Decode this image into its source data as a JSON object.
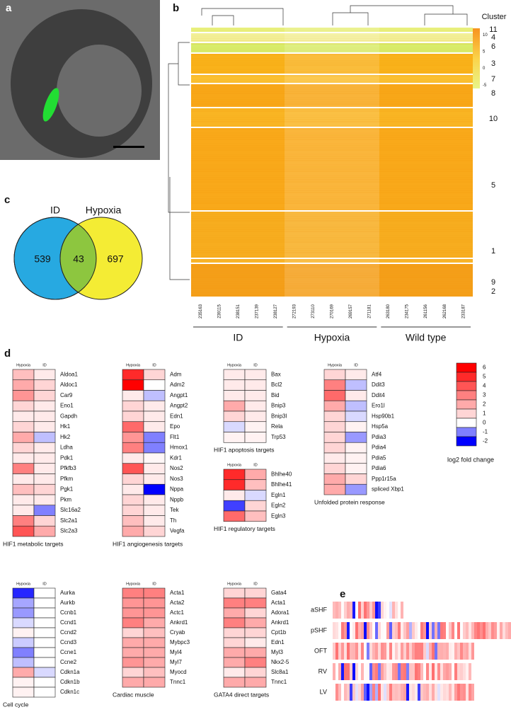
{
  "panel_a": {
    "label": "a"
  },
  "panel_b": {
    "label": "b",
    "cluster_title": "Cluster",
    "clusters": [
      "11",
      "4",
      "6",
      "3",
      "7",
      "8",
      "10",
      "5",
      "1",
      "9",
      "2"
    ],
    "colorbar_ticks": [
      10,
      5,
      0,
      -5
    ],
    "samples": [
      "235163",
      "239115",
      "238151",
      "237139",
      "238127",
      "272193",
      "273110",
      "270169",
      "269157",
      "271181",
      "263180",
      "234175",
      "261156",
      "262168",
      "233187"
    ],
    "groups": [
      "ID",
      "Hypoxia",
      "Wild type"
    ]
  },
  "panel_c": {
    "label": "c",
    "sets": [
      {
        "name": "ID",
        "count": 539
      },
      {
        "name": "Hypoxia",
        "count": 697
      }
    ],
    "overlap": 43
  },
  "panel_d": {
    "label": "d",
    "columns": [
      "Hypoxia",
      "ID"
    ],
    "legend_title": "log2 fold change",
    "legend_ticks": [
      6,
      5,
      4,
      3,
      2,
      1,
      0,
      -1,
      -2
    ],
    "heatmaps": [
      {
        "title": "HIF1 metabolic targets",
        "genes": [
          "Aldoa1",
          "Aldoc1",
          "Car9",
          "Eno1",
          "Gapdh",
          "Hk1",
          "Hk2",
          "Ldha",
          "Pdk1",
          "Pfkfb3",
          "Pfkm",
          "Pgk1",
          "Pkm",
          "Slc16a2",
          "Slc2a1",
          "Slc2a3"
        ],
        "hypoxia": [
          1.5,
          2,
          2.5,
          1,
          0.5,
          1,
          2,
          1,
          0.5,
          3,
          0.5,
          1.5,
          0.5,
          0.5,
          3,
          4
        ],
        "id": [
          0.5,
          1,
          1,
          0.5,
          0.5,
          0.5,
          -0.5,
          0.5,
          0.5,
          0.5,
          0.5,
          1,
          0.5,
          -1,
          1,
          2
        ]
      },
      {
        "title": "HIF1 angiogenesis targets",
        "genes": [
          "Adm",
          "Adm2",
          "Angpt1",
          "Angpt2",
          "Edn1",
          "Epo",
          "Flt1",
          "Hmox1",
          "Kdr1",
          "Nos2",
          "Nos3",
          "Nppa",
          "Nppb",
          "Tek",
          "Th",
          "Vegfa"
        ],
        "hypoxia": [
          5,
          6,
          0.5,
          1,
          1,
          3.5,
          2.5,
          3,
          0.5,
          4,
          1,
          0.5,
          1,
          1,
          1.5,
          2
        ],
        "id": [
          1,
          0,
          -0.5,
          0.5,
          0.5,
          0.5,
          -1,
          -1,
          0.2,
          0.5,
          0.5,
          -2,
          0.5,
          0.5,
          0.5,
          1
        ]
      },
      {
        "title": "HIF1 apoptosis targets",
        "genes": [
          "Bax",
          "Bcl2",
          "Bid",
          "Bnip3",
          "Bnip3l",
          "Rela",
          "Trp53"
        ],
        "hypoxia": [
          0.5,
          0.5,
          0.5,
          2,
          1,
          -0.3,
          0.3
        ],
        "id": [
          0.5,
          0.5,
          0.5,
          0.5,
          0.5,
          0.3,
          0.3
        ]
      },
      {
        "title": "HIF1 regulatory targets",
        "genes": [
          "Bhlhe40",
          "Bhlhe41",
          "Egln1",
          "Egln2",
          "Egln3"
        ],
        "hypoxia": [
          5,
          5,
          0.5,
          -1.5,
          3.5
        ],
        "id": [
          2,
          1.5,
          -0.3,
          1,
          1.5
        ]
      },
      {
        "title": "Unfolded protein response",
        "genes": [
          "Atf4",
          "Ddit3",
          "Ddit4",
          "Ero1l",
          "Hsp90b1",
          "Hsp5a",
          "Pdia3",
          "Pdia4",
          "Pdia5",
          "Pdia6",
          "Ppp1r15a",
          "spliced Xbp1"
        ],
        "hypoxia": [
          1,
          3,
          3.5,
          2,
          1,
          1,
          1,
          1,
          0.5,
          1,
          2,
          2
        ],
        "id": [
          0.5,
          -0.5,
          0.5,
          -0.5,
          -0.3,
          0.3,
          -0.8,
          0.3,
          0.3,
          0.3,
          1,
          -0.8
        ]
      },
      {
        "title": "Cell cycle",
        "genes": [
          "Aurka",
          "Aurkb",
          "Ccnb1",
          "Ccnd1",
          "Ccnd2",
          "Ccnd3",
          "Ccne1",
          "Ccne2",
          "Cdkn1a",
          "Cdkn1b",
          "Cdkn1c"
        ],
        "hypoxia": [
          -1.7,
          -0.7,
          -0.8,
          -0.3,
          0.3,
          -0.4,
          -1,
          -0.5,
          2,
          0.3,
          0.3
        ],
        "id": [
          0,
          0,
          0,
          0,
          0,
          0,
          0,
          0,
          -0.3,
          0,
          0
        ]
      },
      {
        "title": "Cardiac muscle",
        "genes": [
          "Acta1",
          "Acta2",
          "Actc1",
          "Ankrd1",
          "Cryab",
          "Mybpc3",
          "Myl4",
          "Myl7",
          "Myocd",
          "Tnnc1"
        ],
        "hypoxia": [
          3,
          2.5,
          2.5,
          3,
          1,
          2,
          2,
          2.5,
          1,
          2
        ],
        "id": [
          3,
          2.5,
          2.5,
          2,
          1.5,
          2,
          2,
          2,
          1.5,
          2
        ]
      },
      {
        "title": "GATA4 direct targets",
        "genes": [
          "Gata4",
          "Acta1",
          "Adora1",
          "Ankrd1",
          "Cpt1b",
          "Edn1",
          "Myl3",
          "Nkx2-5",
          "Slc8a1",
          "Tnnc1"
        ],
        "hypoxia": [
          1,
          3,
          2,
          3,
          1,
          1,
          2,
          2,
          0.5,
          2
        ],
        "id": [
          1,
          3,
          1,
          2,
          1,
          0.5,
          2,
          3,
          1,
          2
        ]
      }
    ]
  },
  "panel_e": {
    "label": "e",
    "rows": [
      "aSHF",
      "pSHF",
      "OFT",
      "RV",
      "LV"
    ]
  }
}
